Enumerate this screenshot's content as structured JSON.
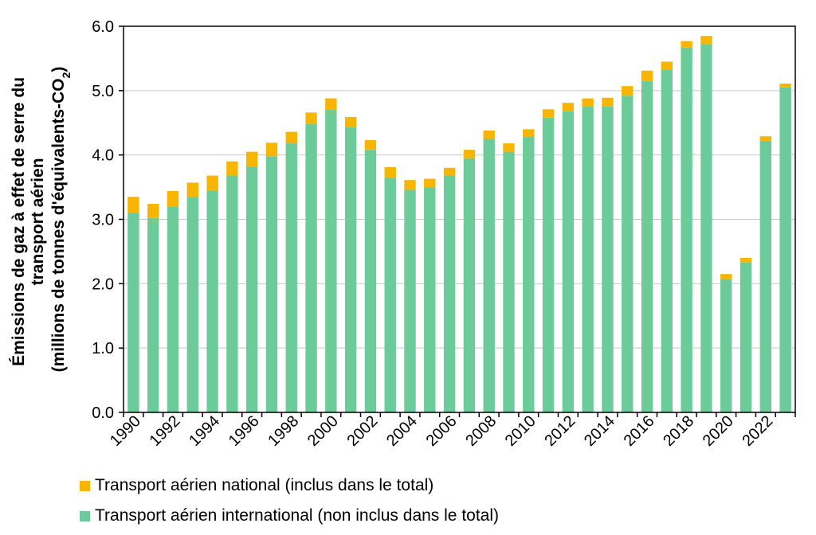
{
  "colors": {
    "national": "#f7b500",
    "international": "#6ccc99",
    "grid": "#c8c8c8",
    "axis": "#000000"
  },
  "chart_data": {
    "type": "bar",
    "stacked": true,
    "categories": [
      "1990",
      "1991",
      "1992",
      "1993",
      "1994",
      "1995",
      "1996",
      "1997",
      "1998",
      "1999",
      "2000",
      "2001",
      "2002",
      "2003",
      "2004",
      "2005",
      "2006",
      "2007",
      "2008",
      "2009",
      "2010",
      "2011",
      "2012",
      "2013",
      "2014",
      "2015",
      "2016",
      "2017",
      "2018",
      "2019",
      "2020",
      "2021",
      "2022",
      "2023"
    ],
    "x_tick_labels": [
      "1990",
      "1992",
      "1994",
      "1996",
      "1998",
      "2000",
      "2002",
      "2004",
      "2006",
      "2008",
      "2010",
      "2012",
      "2014",
      "2016",
      "2018",
      "2020",
      "2022"
    ],
    "series": [
      {
        "name": "Transport aérien international (non inclus dans le total)",
        "color_key": "international",
        "values": [
          3.1,
          3.02,
          3.2,
          3.35,
          3.45,
          3.68,
          3.82,
          3.98,
          4.18,
          4.48,
          4.7,
          4.43,
          4.08,
          3.65,
          3.46,
          3.5,
          3.68,
          3.95,
          4.25,
          4.05,
          4.28,
          4.58,
          4.68,
          4.75,
          4.76,
          4.92,
          5.15,
          5.32,
          5.67,
          5.72,
          2.07,
          2.33,
          4.22,
          5.05
        ]
      },
      {
        "name": "Transport aérien national (inclus dans le total)",
        "color_key": "national",
        "values": [
          0.25,
          0.22,
          0.24,
          0.22,
          0.23,
          0.22,
          0.23,
          0.21,
          0.18,
          0.18,
          0.18,
          0.16,
          0.15,
          0.16,
          0.15,
          0.13,
          0.12,
          0.13,
          0.13,
          0.13,
          0.12,
          0.13,
          0.13,
          0.13,
          0.13,
          0.15,
          0.16,
          0.13,
          0.1,
          0.13,
          0.08,
          0.07,
          0.07,
          0.06
        ]
      }
    ],
    "ylim": [
      0,
      6
    ],
    "y_ticks": [
      "0.0",
      "1.0",
      "2.0",
      "3.0",
      "4.0",
      "5.0",
      "6.0"
    ],
    "y_tick_values": [
      0,
      1,
      2,
      3,
      4,
      5,
      6
    ],
    "ylabel_lines": [
      "Émissions de gaz à effet de serre du",
      "transport aérien",
      "(millions de tonnes d'équivalents-CO"
    ],
    "ylabel_subscript": "2",
    "ylabel_close": ")",
    "xlabel": "",
    "grid": "horizontal",
    "legend_position": "bottom-left"
  },
  "legend": {
    "national_label": "Transport aérien national (inclus dans le total)",
    "international_label": "Transport aérien international (non inclus dans le total)"
  }
}
